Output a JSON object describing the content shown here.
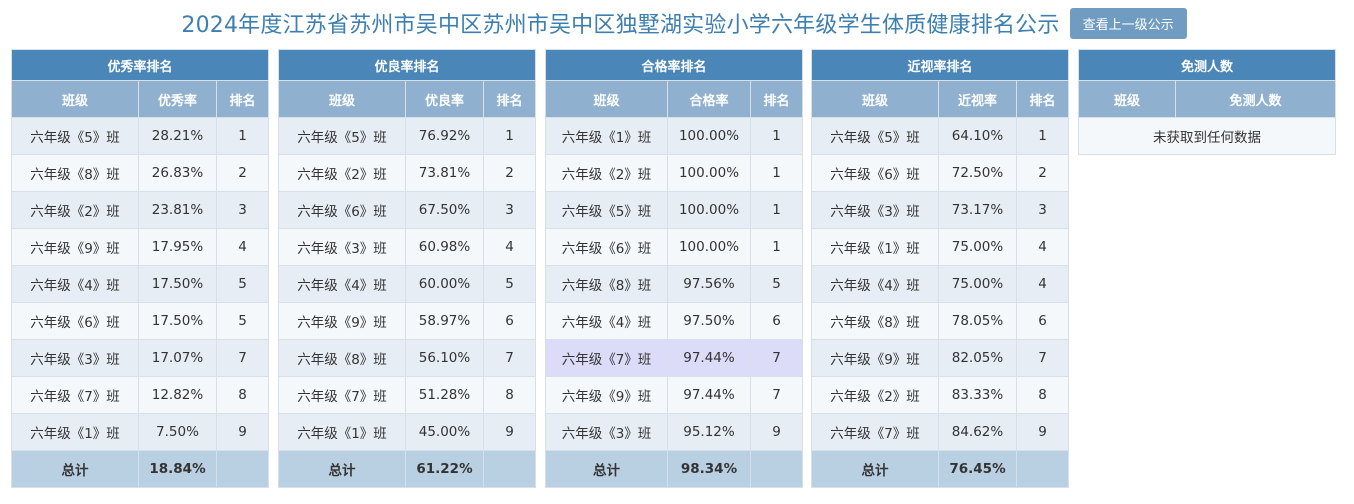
{
  "header": {
    "title": "2024年度江苏省苏州市吴中区苏州市吴中区独墅湖实验小学六年级学生体质健康排名公示",
    "up_button": "查看上一级公示"
  },
  "tables": [
    {
      "caption": "优秀率排名",
      "col_class": "班级",
      "col_rate": "优秀率",
      "col_rank": "排名",
      "rows": [
        {
          "cls": "六年级《5》班",
          "rate": "28.21%",
          "rank": "1"
        },
        {
          "cls": "六年级《8》班",
          "rate": "26.83%",
          "rank": "2"
        },
        {
          "cls": "六年级《2》班",
          "rate": "23.81%",
          "rank": "3"
        },
        {
          "cls": "六年级《9》班",
          "rate": "17.95%",
          "rank": "4"
        },
        {
          "cls": "六年级《4》班",
          "rate": "17.50%",
          "rank": "5"
        },
        {
          "cls": "六年级《6》班",
          "rate": "17.50%",
          "rank": "5"
        },
        {
          "cls": "六年级《3》班",
          "rate": "17.07%",
          "rank": "7"
        },
        {
          "cls": "六年级《7》班",
          "rate": "12.82%",
          "rank": "8"
        },
        {
          "cls": "六年级《1》班",
          "rate": "7.50%",
          "rank": "9"
        }
      ],
      "total_label": "总计",
      "total_value": "18.84%"
    },
    {
      "caption": "优良率排名",
      "col_class": "班级",
      "col_rate": "优良率",
      "col_rank": "排名",
      "rows": [
        {
          "cls": "六年级《5》班",
          "rate": "76.92%",
          "rank": "1"
        },
        {
          "cls": "六年级《2》班",
          "rate": "73.81%",
          "rank": "2"
        },
        {
          "cls": "六年级《6》班",
          "rate": "67.50%",
          "rank": "3"
        },
        {
          "cls": "六年级《3》班",
          "rate": "60.98%",
          "rank": "4"
        },
        {
          "cls": "六年级《4》班",
          "rate": "60.00%",
          "rank": "5"
        },
        {
          "cls": "六年级《9》班",
          "rate": "58.97%",
          "rank": "6"
        },
        {
          "cls": "六年级《8》班",
          "rate": "56.10%",
          "rank": "7"
        },
        {
          "cls": "六年级《7》班",
          "rate": "51.28%",
          "rank": "8"
        },
        {
          "cls": "六年级《1》班",
          "rate": "45.00%",
          "rank": "9"
        }
      ],
      "total_label": "总计",
      "total_value": "61.22%"
    },
    {
      "caption": "合格率排名",
      "col_class": "班级",
      "col_rate": "合格率",
      "col_rank": "排名",
      "rows": [
        {
          "cls": "六年级《1》班",
          "rate": "100.00%",
          "rank": "1"
        },
        {
          "cls": "六年级《2》班",
          "rate": "100.00%",
          "rank": "1"
        },
        {
          "cls": "六年级《5》班",
          "rate": "100.00%",
          "rank": "1"
        },
        {
          "cls": "六年级《6》班",
          "rate": "100.00%",
          "rank": "1"
        },
        {
          "cls": "六年级《8》班",
          "rate": "97.56%",
          "rank": "5"
        },
        {
          "cls": "六年级《4》班",
          "rate": "97.50%",
          "rank": "6"
        },
        {
          "cls": "六年级《7》班",
          "rate": "97.44%",
          "rank": "7",
          "highlight": true
        },
        {
          "cls": "六年级《9》班",
          "rate": "97.44%",
          "rank": "7"
        },
        {
          "cls": "六年级《3》班",
          "rate": "95.12%",
          "rank": "9"
        }
      ],
      "total_label": "总计",
      "total_value": "98.34%"
    },
    {
      "caption": "近视率排名",
      "col_class": "班级",
      "col_rate": "近视率",
      "col_rank": "排名",
      "rows": [
        {
          "cls": "六年级《5》班",
          "rate": "64.10%",
          "rank": "1"
        },
        {
          "cls": "六年级《6》班",
          "rate": "72.50%",
          "rank": "2"
        },
        {
          "cls": "六年级《3》班",
          "rate": "73.17%",
          "rank": "3"
        },
        {
          "cls": "六年级《1》班",
          "rate": "75.00%",
          "rank": "4"
        },
        {
          "cls": "六年级《4》班",
          "rate": "75.00%",
          "rank": "4"
        },
        {
          "cls": "六年级《8》班",
          "rate": "78.05%",
          "rank": "6"
        },
        {
          "cls": "六年级《9》班",
          "rate": "82.05%",
          "rank": "7"
        },
        {
          "cls": "六年级《2》班",
          "rate": "83.33%",
          "rank": "8"
        },
        {
          "cls": "六年级《7》班",
          "rate": "84.62%",
          "rank": "9"
        }
      ],
      "total_label": "总计",
      "total_value": "76.45%"
    }
  ],
  "exempt": {
    "caption": "免测人数",
    "col_class": "班级",
    "col_count": "免测人数",
    "empty_text": "未获取到任何数据"
  }
}
